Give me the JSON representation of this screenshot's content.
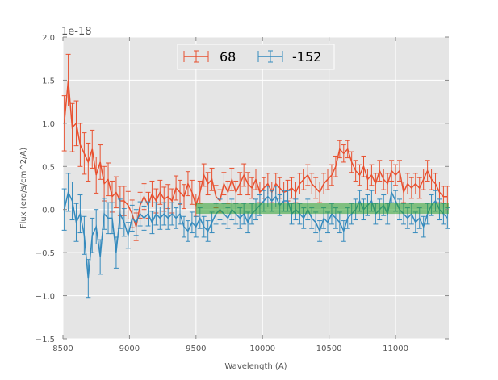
{
  "chart_data": {
    "type": "line",
    "title": "",
    "xlabel": "Wavelength (A)",
    "ylabel": "Flux (erg/s/cm^2/A)",
    "offset_text": "1e-18",
    "xlim": [
      8500,
      11400
    ],
    "ylim": [
      -1.5,
      2.0
    ],
    "xticks": [
      8500,
      9000,
      9500,
      10000,
      10500,
      11000
    ],
    "xtick_labels": [
      "8500",
      "9000",
      "9500",
      "10000",
      "10500",
      "11000"
    ],
    "yticks": [
      -1.5,
      -1.0,
      -0.5,
      0.0,
      0.5,
      1.0,
      1.5,
      2.0
    ],
    "ytick_labels": [
      "−1.5",
      "−1.0",
      "−0.5",
      "0.0",
      "0.5",
      "1.0",
      "1.5",
      "2.0"
    ],
    "grid": true,
    "legend_position": "top-center",
    "band": {
      "x": [
        9500,
        11400
      ],
      "y": [
        -0.05,
        0.08
      ],
      "color": "#2ca02c"
    },
    "x_start": 8510,
    "x_step": 30,
    "series": [
      {
        "name": "68",
        "color": "#e8502f",
        "values": [
          1.0,
          1.5,
          0.95,
          1.0,
          0.75,
          0.65,
          0.55,
          0.7,
          0.4,
          0.55,
          0.3,
          0.35,
          0.15,
          0.2,
          0.1,
          0.1,
          0.05,
          -0.05,
          -0.2,
          0.05,
          0.15,
          0.05,
          0.18,
          0.1,
          0.2,
          0.12,
          0.15,
          0.1,
          0.25,
          0.2,
          0.15,
          0.3,
          0.2,
          0.05,
          0.2,
          0.4,
          0.3,
          0.35,
          0.15,
          0.1,
          0.3,
          0.2,
          0.35,
          0.2,
          0.3,
          0.4,
          0.3,
          0.25,
          0.35,
          0.2,
          0.25,
          0.3,
          0.2,
          0.3,
          0.25,
          0.2,
          0.22,
          0.25,
          0.2,
          0.3,
          0.35,
          0.4,
          0.3,
          0.25,
          0.2,
          0.3,
          0.35,
          0.4,
          0.5,
          0.7,
          0.65,
          0.7,
          0.55,
          0.45,
          0.4,
          0.5,
          0.35,
          0.4,
          0.3,
          0.45,
          0.35,
          0.3,
          0.45,
          0.4,
          0.45,
          0.2,
          0.3,
          0.25,
          0.3,
          0.25,
          0.35,
          0.45,
          0.35,
          0.3,
          0.2,
          0.15,
          0.15
        ],
        "errors": [
          0.32,
          0.3,
          0.28,
          0.26,
          0.25,
          0.24,
          0.22,
          0.22,
          0.21,
          0.2,
          0.2,
          0.19,
          0.18,
          0.18,
          0.17,
          0.17,
          0.16,
          0.16,
          0.16,
          0.15,
          0.15,
          0.15,
          0.15,
          0.14,
          0.14,
          0.14,
          0.14,
          0.14,
          0.14,
          0.14,
          0.14,
          0.14,
          0.14,
          0.13,
          0.13,
          0.13,
          0.13,
          0.13,
          0.13,
          0.13,
          0.13,
          0.13,
          0.13,
          0.13,
          0.13,
          0.13,
          0.13,
          0.12,
          0.12,
          0.12,
          0.12,
          0.12,
          0.12,
          0.12,
          0.12,
          0.12,
          0.12,
          0.12,
          0.12,
          0.12,
          0.12,
          0.12,
          0.12,
          0.12,
          0.12,
          0.12,
          0.12,
          0.12,
          0.12,
          0.1,
          0.1,
          0.1,
          0.12,
          0.12,
          0.12,
          0.12,
          0.12,
          0.12,
          0.12,
          0.12,
          0.12,
          0.12,
          0.12,
          0.12,
          0.12,
          0.12,
          0.12,
          0.12,
          0.12,
          0.12,
          0.12,
          0.12,
          0.12,
          0.12,
          0.12,
          0.12,
          0.12
        ]
      },
      {
        "name": "-152",
        "color": "#348abd",
        "values": [
          0.0,
          0.2,
          0.1,
          -0.15,
          -0.05,
          -0.3,
          -0.8,
          -0.3,
          -0.2,
          -0.55,
          -0.05,
          -0.1,
          -0.1,
          -0.5,
          -0.05,
          -0.15,
          -0.3,
          -0.1,
          -0.15,
          -0.05,
          -0.1,
          -0.05,
          -0.15,
          -0.05,
          -0.1,
          -0.05,
          -0.1,
          -0.05,
          -0.1,
          -0.05,
          -0.2,
          -0.25,
          -0.15,
          -0.2,
          -0.1,
          -0.2,
          -0.25,
          -0.15,
          -0.05,
          0.0,
          -0.05,
          -0.1,
          0.0,
          -0.05,
          -0.1,
          -0.05,
          -0.15,
          -0.05,
          0.0,
          0.05,
          0.1,
          0.15,
          0.1,
          0.15,
          0.05,
          0.1,
          0.1,
          -0.05,
          0.0,
          -0.05,
          -0.1,
          0.0,
          -0.1,
          -0.15,
          -0.25,
          -0.1,
          -0.15,
          -0.05,
          -0.1,
          -0.15,
          -0.25,
          -0.1,
          -0.05,
          0.0,
          0.1,
          0.0,
          0.05,
          0.1,
          -0.05,
          0.0,
          0.05,
          -0.05,
          0.2,
          0.1,
          0.0,
          -0.05,
          -0.1,
          -0.05,
          -0.15,
          -0.1,
          -0.2,
          -0.05,
          0.05,
          0.1,
          0.0,
          -0.05,
          -0.1
        ],
        "errors": [
          0.24,
          0.22,
          0.22,
          0.22,
          0.22,
          0.22,
          0.22,
          0.2,
          0.2,
          0.2,
          0.18,
          0.18,
          0.18,
          0.18,
          0.17,
          0.16,
          0.15,
          0.15,
          0.15,
          0.14,
          0.14,
          0.14,
          0.13,
          0.13,
          0.13,
          0.13,
          0.13,
          0.13,
          0.12,
          0.12,
          0.12,
          0.12,
          0.12,
          0.12,
          0.12,
          0.12,
          0.12,
          0.12,
          0.12,
          0.12,
          0.12,
          0.12,
          0.12,
          0.12,
          0.12,
          0.12,
          0.12,
          0.12,
          0.12,
          0.12,
          0.12,
          0.12,
          0.12,
          0.12,
          0.12,
          0.12,
          0.12,
          0.12,
          0.12,
          0.12,
          0.12,
          0.12,
          0.12,
          0.12,
          0.12,
          0.12,
          0.12,
          0.12,
          0.12,
          0.12,
          0.12,
          0.12,
          0.12,
          0.12,
          0.12,
          0.12,
          0.12,
          0.12,
          0.12,
          0.12,
          0.12,
          0.12,
          0.12,
          0.12,
          0.12,
          0.12,
          0.12,
          0.12,
          0.12,
          0.12,
          0.12,
          0.12,
          0.12,
          0.12,
          0.12,
          0.12,
          0.12
        ]
      }
    ]
  }
}
